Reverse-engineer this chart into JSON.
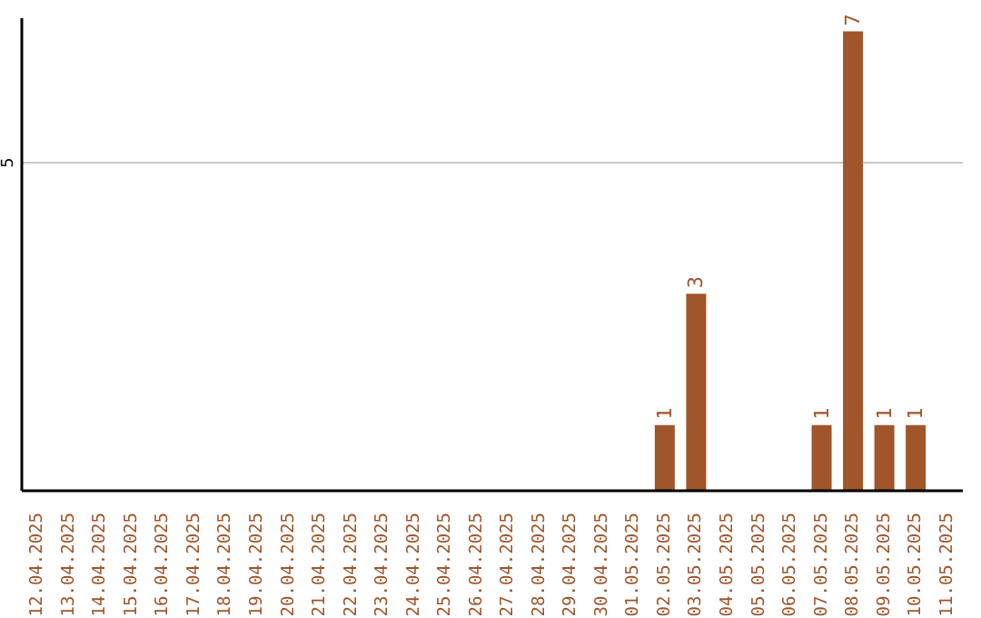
{
  "chart_data": {
    "type": "bar",
    "categories": [
      "12.04.2025",
      "13.04.2025",
      "14.04.2025",
      "15.04.2025",
      "16.04.2025",
      "17.04.2025",
      "18.04.2025",
      "19.04.2025",
      "20.04.2025",
      "21.04.2025",
      "22.04.2025",
      "23.04.2025",
      "24.04.2025",
      "25.04.2025",
      "26.04.2025",
      "27.04.2025",
      "28.04.2025",
      "29.04.2025",
      "30.04.2025",
      "01.05.2025",
      "02.05.2025",
      "03.05.2025",
      "04.05.2025",
      "05.05.2025",
      "06.05.2025",
      "07.05.2025",
      "08.05.2025",
      "09.05.2025",
      "10.05.2025",
      "11.05.2025"
    ],
    "values": [
      null,
      null,
      null,
      null,
      null,
      null,
      null,
      null,
      null,
      null,
      null,
      null,
      null,
      null,
      null,
      null,
      null,
      null,
      null,
      null,
      1,
      3,
      null,
      null,
      null,
      1,
      7,
      1,
      1,
      null
    ],
    "color": "#a0552a",
    "ylim": [
      0,
      7.2
    ],
    "yticks": [
      5
    ],
    "grid": "y",
    "data_labels": true
  }
}
